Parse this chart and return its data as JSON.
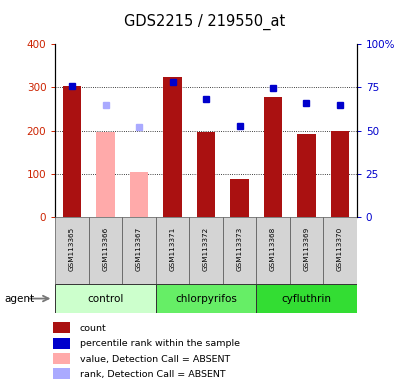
{
  "title": "GDS2215 / 219550_at",
  "samples": [
    "GSM113365",
    "GSM113366",
    "GSM113367",
    "GSM113371",
    "GSM113372",
    "GSM113373",
    "GSM113368",
    "GSM113369",
    "GSM113370"
  ],
  "groups": [
    {
      "name": "control",
      "indices": [
        0,
        1,
        2
      ],
      "color": "#ccffcc"
    },
    {
      "name": "chlorpyrifos",
      "indices": [
        3,
        4,
        5
      ],
      "color": "#66ee66"
    },
    {
      "name": "cyfluthrin",
      "indices": [
        6,
        7,
        8
      ],
      "color": "#33dd33"
    }
  ],
  "bar_values": [
    302,
    197,
    104,
    325,
    197,
    87,
    277,
    191,
    199
  ],
  "bar_color": "#aa1111",
  "absent_bar_indices": [
    1,
    2
  ],
  "absent_bar_color": "#ffaaaa",
  "dot_values": [
    304,
    null,
    null,
    312,
    274,
    210,
    298,
    264,
    260
  ],
  "dot_color": "#0000cc",
  "absent_dot_values": [
    null,
    260,
    208,
    null,
    null,
    null,
    null,
    null,
    null
  ],
  "absent_dot_color": "#aaaaff",
  "ylim_left": [
    0,
    400
  ],
  "ylim_right": [
    0,
    100
  ],
  "yticks_left": [
    0,
    100,
    200,
    300,
    400
  ],
  "ytick_labels_left": [
    "0",
    "100",
    "200",
    "300",
    "400"
  ],
  "yticks_right": [
    0,
    25,
    50,
    75,
    100
  ],
  "ytick_labels_right": [
    "0",
    "25",
    "50",
    "75",
    "100%"
  ],
  "grid_values": [
    100,
    200,
    300
  ],
  "legend_items": [
    {
      "label": "count",
      "color": "#aa1111"
    },
    {
      "label": "percentile rank within the sample",
      "color": "#0000cc"
    },
    {
      "label": "value, Detection Call = ABSENT",
      "color": "#ffaaaa"
    },
    {
      "label": "rank, Detection Call = ABSENT",
      "color": "#aaaaff"
    }
  ],
  "agent_label": "agent",
  "tick_color_left": "#cc2200",
  "tick_color_right": "#0000cc"
}
